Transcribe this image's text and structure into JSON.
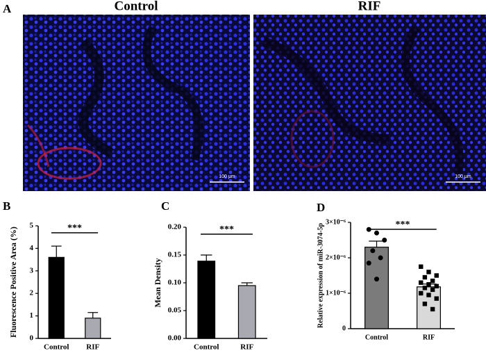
{
  "figure": {
    "panel_a": {
      "label": "A",
      "images": [
        {
          "title": "Control",
          "scale_bar": "100 μm"
        },
        {
          "title": "RIF",
          "scale_bar": "100 μm"
        }
      ]
    }
  },
  "chart_data": [
    {
      "type": "bar",
      "panel_label": "B",
      "ylabel": "Fluorescence Positive Area (%)",
      "categories": [
        "Control",
        "RIF"
      ],
      "values": [
        3.6,
        0.9
      ],
      "errors": [
        0.5,
        0.25
      ],
      "colors": [
        "#000000",
        "#a9a9b1"
      ],
      "ylim": [
        0,
        5
      ],
      "yticks": [
        0,
        1,
        2,
        3,
        4,
        5
      ],
      "significance": "***"
    },
    {
      "type": "bar",
      "panel_label": "C",
      "ylabel": "Mean Density",
      "categories": [
        "Control",
        "RIF"
      ],
      "values": [
        0.139,
        0.095
      ],
      "errors": [
        0.011,
        0.005
      ],
      "colors": [
        "#000000",
        "#a9a9b1"
      ],
      "ylim": [
        0,
        0.2
      ],
      "yticks": [
        {
          "value": 0,
          "label": "0.00"
        },
        0.05,
        {
          "value": 0.1,
          "label": "0.10"
        },
        0.15,
        {
          "value": 0.2,
          "label": "0.20"
        }
      ],
      "significance": "***"
    },
    {
      "type": "bar",
      "panel_label": "D",
      "ylabel": "Relative expression of miR-3074-5p",
      "categories": [
        "Control",
        "RIF"
      ],
      "values": [
        2.3e-06,
        1.18e-06
      ],
      "errors": [
        1.7e-07,
        8e-08
      ],
      "colors": [
        "#7b7b7b",
        "#d9d9d9"
      ],
      "points": [
        [
          2.8e-06,
          2.7e-06,
          2.5e-06,
          2.2e-06,
          2e-06,
          1.85e-06,
          1.4e-06
        ],
        [
          1.75e-06,
          1.6e-06,
          1.5e-06,
          1.45e-06,
          1.35e-06,
          1.3e-06,
          1.25e-06,
          1.2e-06,
          1.15e-06,
          1.1e-06,
          1e-06,
          9.5e-07,
          8.5e-07,
          7e-07,
          5.5e-07
        ]
      ],
      "ylim": [
        0,
        3e-06
      ],
      "yticks": [
        0,
        {
          "value": 1e-06,
          "label": "1×10⁻⁶"
        },
        {
          "value": 2e-06,
          "label": "2×10⁻⁶"
        },
        {
          "value": 3e-06,
          "label": "3×10⁻⁶"
        }
      ],
      "significance": "***"
    }
  ]
}
